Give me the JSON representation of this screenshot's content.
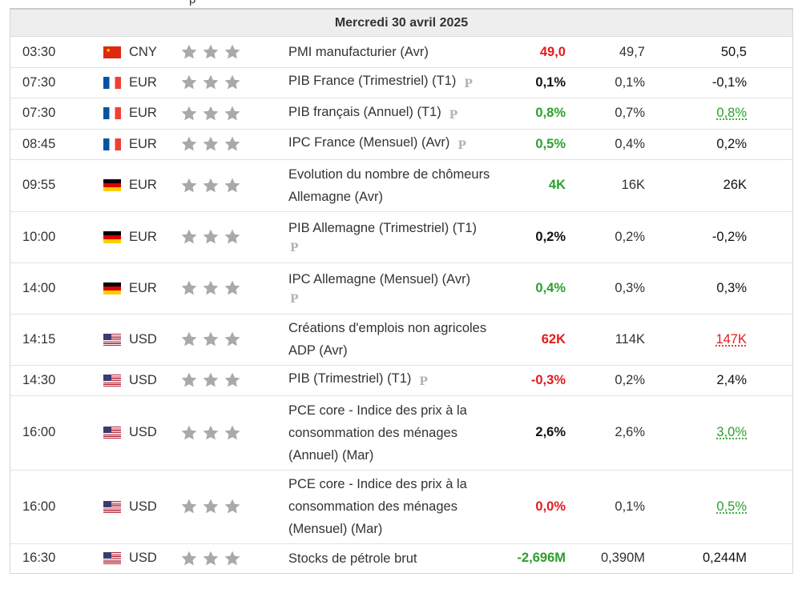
{
  "cut_off_top_text": "p",
  "day_header": "Mercredi 30 avril 2025",
  "impact_icon": "star-icon",
  "colors": {
    "positive": "#2ca02c",
    "negative": "#e31b1b",
    "star": "#a9a9a9"
  },
  "rows": [
    {
      "time": "03:30",
      "flag": "cn",
      "currency": "CNY",
      "event": "PMI manufacturier (Avr)",
      "preliminary": false,
      "actual": "49,0",
      "actual_tone": "neg",
      "forecast": "49,7",
      "previous": "50,5",
      "previous_tone": "neutral"
    },
    {
      "time": "07:30",
      "flag": "fr",
      "currency": "EUR",
      "event": "PIB France (Trimestriel) (T1)",
      "preliminary": true,
      "prelim_label": "P",
      "actual": "0,1%",
      "actual_tone": "neutral",
      "forecast": "0,1%",
      "previous": "-0,1%",
      "previous_tone": "neutral"
    },
    {
      "time": "07:30",
      "flag": "fr",
      "currency": "EUR",
      "event": "PIB français (Annuel) (T1)",
      "preliminary": true,
      "prelim_label": "P",
      "actual": "0,8%",
      "actual_tone": "pos",
      "forecast": "0,7%",
      "previous": "0,8%",
      "previous_tone": "pos"
    },
    {
      "time": "08:45",
      "flag": "fr",
      "currency": "EUR",
      "event": "IPC France (Mensuel) (Avr)",
      "preliminary": true,
      "prelim_label": "P",
      "actual": "0,5%",
      "actual_tone": "pos",
      "forecast": "0,4%",
      "previous": "0,2%",
      "previous_tone": "neutral"
    },
    {
      "time": "09:55",
      "flag": "de",
      "currency": "EUR",
      "event": "Evolution du nombre de chômeurs Allemagne (Avr)",
      "preliminary": false,
      "actual": "4K",
      "actual_tone": "pos",
      "forecast": "16K",
      "previous": "26K",
      "previous_tone": "neutral"
    },
    {
      "time": "10:00",
      "flag": "de",
      "currency": "EUR",
      "event": "PIB Allemagne (Trimestriel) (T1)",
      "preliminary": true,
      "prelim_label": "P",
      "prelim_newline": true,
      "actual": "0,2%",
      "actual_tone": "neutral",
      "forecast": "0,2%",
      "previous": "-0,2%",
      "previous_tone": "neutral"
    },
    {
      "time": "14:00",
      "flag": "de",
      "currency": "EUR",
      "event": "IPC Allemagne (Mensuel) (Avr)",
      "preliminary": true,
      "prelim_label": "P",
      "prelim_newline": true,
      "actual": "0,4%",
      "actual_tone": "pos",
      "forecast": "0,3%",
      "previous": "0,3%",
      "previous_tone": "neutral"
    },
    {
      "time": "14:15",
      "flag": "us",
      "currency": "USD",
      "event": "Créations d'emplois non agricoles ADP (Avr)",
      "preliminary": false,
      "actual": "62K",
      "actual_tone": "neg",
      "forecast": "114K",
      "previous": "147K",
      "previous_tone": "neg"
    },
    {
      "time": "14:30",
      "flag": "us",
      "currency": "USD",
      "event": "PIB (Trimestriel) (T1)",
      "preliminary": true,
      "prelim_label": "P",
      "actual": "-0,3%",
      "actual_tone": "neg",
      "forecast": "0,2%",
      "previous": "2,4%",
      "previous_tone": "neutral"
    },
    {
      "time": "16:00",
      "flag": "us",
      "currency": "USD",
      "event": "PCE core - Indice des prix à la consommation des ménages (Annuel) (Mar)",
      "preliminary": false,
      "actual": "2,6%",
      "actual_tone": "neutral",
      "forecast": "2,6%",
      "previous": "3,0%",
      "previous_tone": "pos"
    },
    {
      "time": "16:00",
      "flag": "us",
      "currency": "USD",
      "event": "PCE core - Indice des prix à la consommation des ménages (Mensuel) (Mar)",
      "preliminary": false,
      "actual": "0,0%",
      "actual_tone": "neg",
      "forecast": "0,1%",
      "previous": "0,5%",
      "previous_tone": "pos"
    },
    {
      "time": "16:30",
      "flag": "us",
      "currency": "USD",
      "event": "Stocks de pétrole brut",
      "preliminary": false,
      "actual": "-2,696M",
      "actual_tone": "pos",
      "forecast": "0,390M",
      "previous": "0,244M",
      "previous_tone": "neutral"
    }
  ]
}
